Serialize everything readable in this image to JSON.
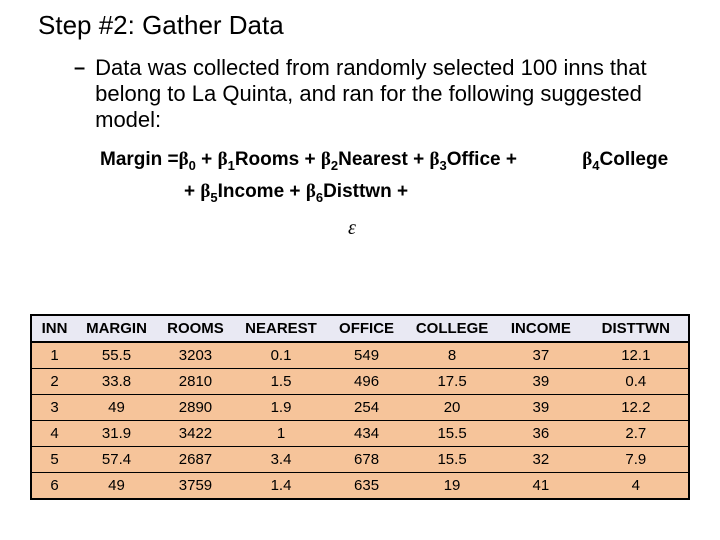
{
  "title": "Step #2: Gather Data",
  "bullet": {
    "dash": "–",
    "text": "Data was collected from randomly selected 100 inns that belong to La Quinta, and ran for the following suggested model:"
  },
  "formula": {
    "line1_lead": "Margin =",
    "b0": "β",
    "s0": "0",
    "p0": " + ",
    "b1": "β",
    "s1": "1",
    "t1": "Rooms",
    "p1": " + ",
    "b2": "β",
    "s2": "2",
    "t2": "Nearest",
    "p2": " + ",
    "b3": "β",
    "s3": "3",
    "t3": "Office",
    "p3": " + ",
    "b4": "β",
    "s4": "4",
    "t4": "College",
    "line2_lead": "+ ",
    "b5": "β",
    "s5": "5",
    "t5": "Income",
    "p5": " + ",
    "b6": "β",
    "s6": "6",
    "t6": "Disttwn",
    "p6": " + ",
    "eps": "ε"
  },
  "table": {
    "columns": [
      "INN",
      "MARGIN",
      "ROOMS",
      "NEAREST",
      "OFFICE",
      "COLLEGE",
      "INCOME",
      "DISTTWN"
    ],
    "rows": [
      [
        "1",
        "55.5",
        "3203",
        "0.1",
        "549",
        "8",
        "37",
        "12.1"
      ],
      [
        "2",
        "33.8",
        "2810",
        "1.5",
        "496",
        "17.5",
        "39",
        "0.4"
      ],
      [
        "3",
        "49",
        "2890",
        "1.9",
        "254",
        "20",
        "39",
        "12.2"
      ],
      [
        "4",
        "31.9",
        "3422",
        "1",
        "434",
        "15.5",
        "36",
        "2.7"
      ],
      [
        "5",
        "57.4",
        "2687",
        "3.4",
        "678",
        "15.5",
        "32",
        "7.9"
      ],
      [
        "6",
        "49",
        "3759",
        "1.4",
        "635",
        "19",
        "41",
        "4"
      ]
    ],
    "header_bg": "#e9e9f3",
    "cell_bg": "#f6c49a",
    "border_color": "#000000"
  }
}
